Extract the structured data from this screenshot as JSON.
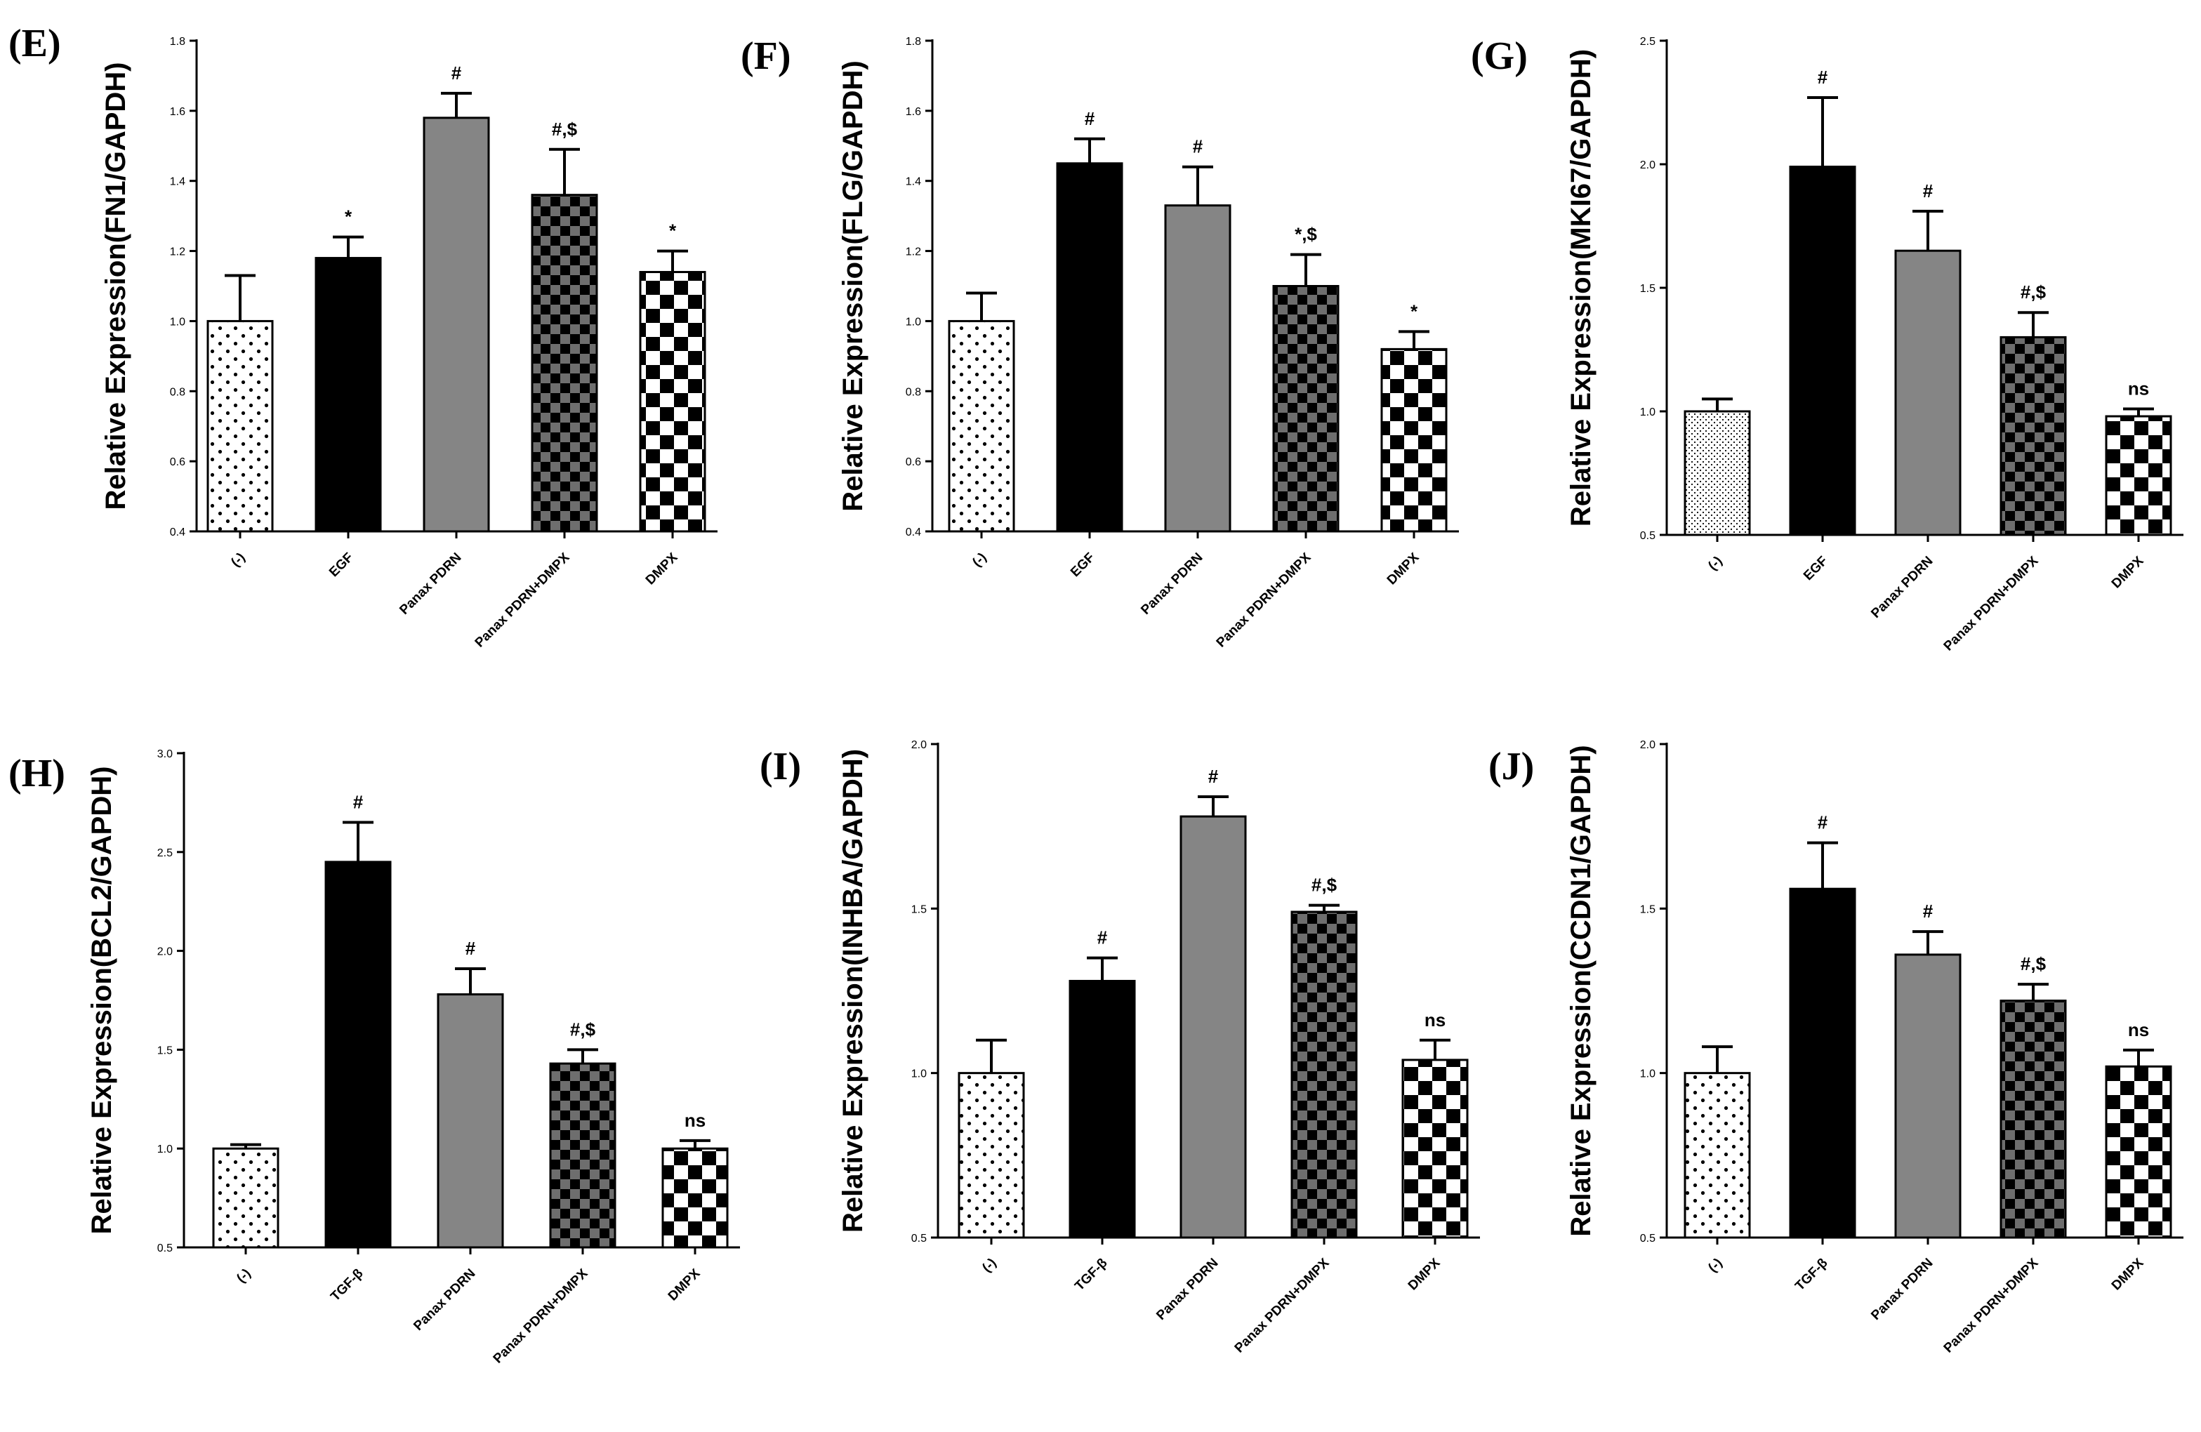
{
  "chart_data": [
    {
      "panel": "(E)",
      "type": "bar",
      "ylabel": "Relative Expression(FN1/GAPDH)",
      "ylim": [
        0.4,
        1.8
      ],
      "yticks": [
        "0.4",
        "0.6",
        "0.8",
        "1.0",
        "1.2",
        "1.4",
        "1.6",
        "1.8"
      ],
      "categories": [
        "(-)",
        "EGF",
        "Panax PDRN",
        "Panax PDRN+DMPX",
        "DMPX"
      ],
      "values": [
        1.0,
        1.18,
        1.58,
        1.36,
        1.14
      ],
      "errors": [
        0.13,
        0.06,
        0.07,
        0.13,
        0.06
      ],
      "annotations": [
        "",
        "*",
        "#",
        "#,$",
        "*"
      ],
      "patterns": [
        "dots",
        "black",
        "gray",
        "checker-gray",
        "checker"
      ]
    },
    {
      "panel": "(F)",
      "type": "bar",
      "ylabel": "Relative Expression(FLG/GAPDH)",
      "ylim": [
        0.4,
        1.8
      ],
      "yticks": [
        "0.4",
        "0.6",
        "0.8",
        "1.0",
        "1.2",
        "1.4",
        "1.6",
        "1.8"
      ],
      "categories": [
        "(-)",
        "EGF",
        "Panax PDRN",
        "Panax PDRN+DMPX",
        "DMPX"
      ],
      "values": [
        1.0,
        1.45,
        1.33,
        1.1,
        0.92
      ],
      "errors": [
        0.08,
        0.07,
        0.11,
        0.09,
        0.05
      ],
      "annotations": [
        "",
        "#",
        "#",
        "*,$",
        "*"
      ],
      "patterns": [
        "dots",
        "black",
        "gray",
        "checker-gray",
        "checker"
      ]
    },
    {
      "panel": "(G)",
      "type": "bar",
      "ylabel": "Relative Expression(MKI67/GAPDH)",
      "ylim": [
        0.5,
        2.5
      ],
      "yticks": [
        "0.5",
        "1.0",
        "1.5",
        "2.0",
        "2.5"
      ],
      "categories": [
        "(-)",
        "EGF",
        "Panax PDRN",
        "Panax PDRN+DMPX",
        "DMPX"
      ],
      "values": [
        1.0,
        1.99,
        1.65,
        1.3,
        0.98
      ],
      "errors": [
        0.05,
        0.28,
        0.16,
        0.1,
        0.03
      ],
      "annotations": [
        "",
        "#",
        "#",
        "#,$",
        "ns"
      ],
      "patterns": [
        "fine-dots",
        "black",
        "gray",
        "checker-gray",
        "checker"
      ]
    },
    {
      "panel": "(H)",
      "type": "bar",
      "ylabel": "Relative Expression(BCL2/GAPDH)",
      "ylim": [
        0.5,
        3.0
      ],
      "yticks": [
        "0.5",
        "1.0",
        "1.5",
        "2.0",
        "2.5",
        "3.0"
      ],
      "categories": [
        "(-)",
        "TGF-β",
        "Panax PDRN",
        "Panax PDRN+DMPX",
        "DMPX"
      ],
      "values": [
        1.0,
        2.45,
        1.78,
        1.43,
        1.0
      ],
      "errors": [
        0.02,
        0.2,
        0.13,
        0.07,
        0.04
      ],
      "annotations": [
        "",
        "#",
        "#",
        "#,$",
        "ns"
      ],
      "patterns": [
        "dots",
        "black",
        "gray",
        "checker-gray",
        "checker"
      ]
    },
    {
      "panel": "(I)",
      "type": "bar",
      "ylabel": "Relative Expression(INHBA/GAPDH)",
      "ylim": [
        0.5,
        2.0
      ],
      "yticks": [
        "0.5",
        "1.0",
        "1.5",
        "2.0"
      ],
      "categories": [
        "(-)",
        "TGF-β",
        "Panax PDRN",
        "Panax PDRN+DMPX",
        "DMPX"
      ],
      "values": [
        1.0,
        1.28,
        1.78,
        1.49,
        1.04
      ],
      "errors": [
        0.1,
        0.07,
        0.06,
        0.02,
        0.06
      ],
      "annotations": [
        "",
        "#",
        "#",
        "#,$",
        "ns"
      ],
      "patterns": [
        "dots",
        "black",
        "gray",
        "checker-gray",
        "checker"
      ]
    },
    {
      "panel": "(J)",
      "type": "bar",
      "ylabel": "Relative Expression(CCDN1/GAPDH)",
      "ylim": [
        0.5,
        2.0
      ],
      "yticks": [
        "0.5",
        "1.0",
        "1.5",
        "2.0"
      ],
      "categories": [
        "(-)",
        "TGF-β",
        "Panax PDRN",
        "Panax PDRN+DMPX",
        "DMPX"
      ],
      "values": [
        1.0,
        1.56,
        1.36,
        1.22,
        1.02
      ],
      "errors": [
        0.08,
        0.14,
        0.07,
        0.05,
        0.05
      ],
      "annotations": [
        "",
        "#",
        "#",
        "#,$",
        "ns"
      ],
      "patterns": [
        "dots",
        "black",
        "gray",
        "checker-gray",
        "checker"
      ]
    }
  ],
  "colors": {
    "black": "#000000",
    "gray": "#858585",
    "checker_gray": "#6e6e6e",
    "white": "#ffffff"
  }
}
